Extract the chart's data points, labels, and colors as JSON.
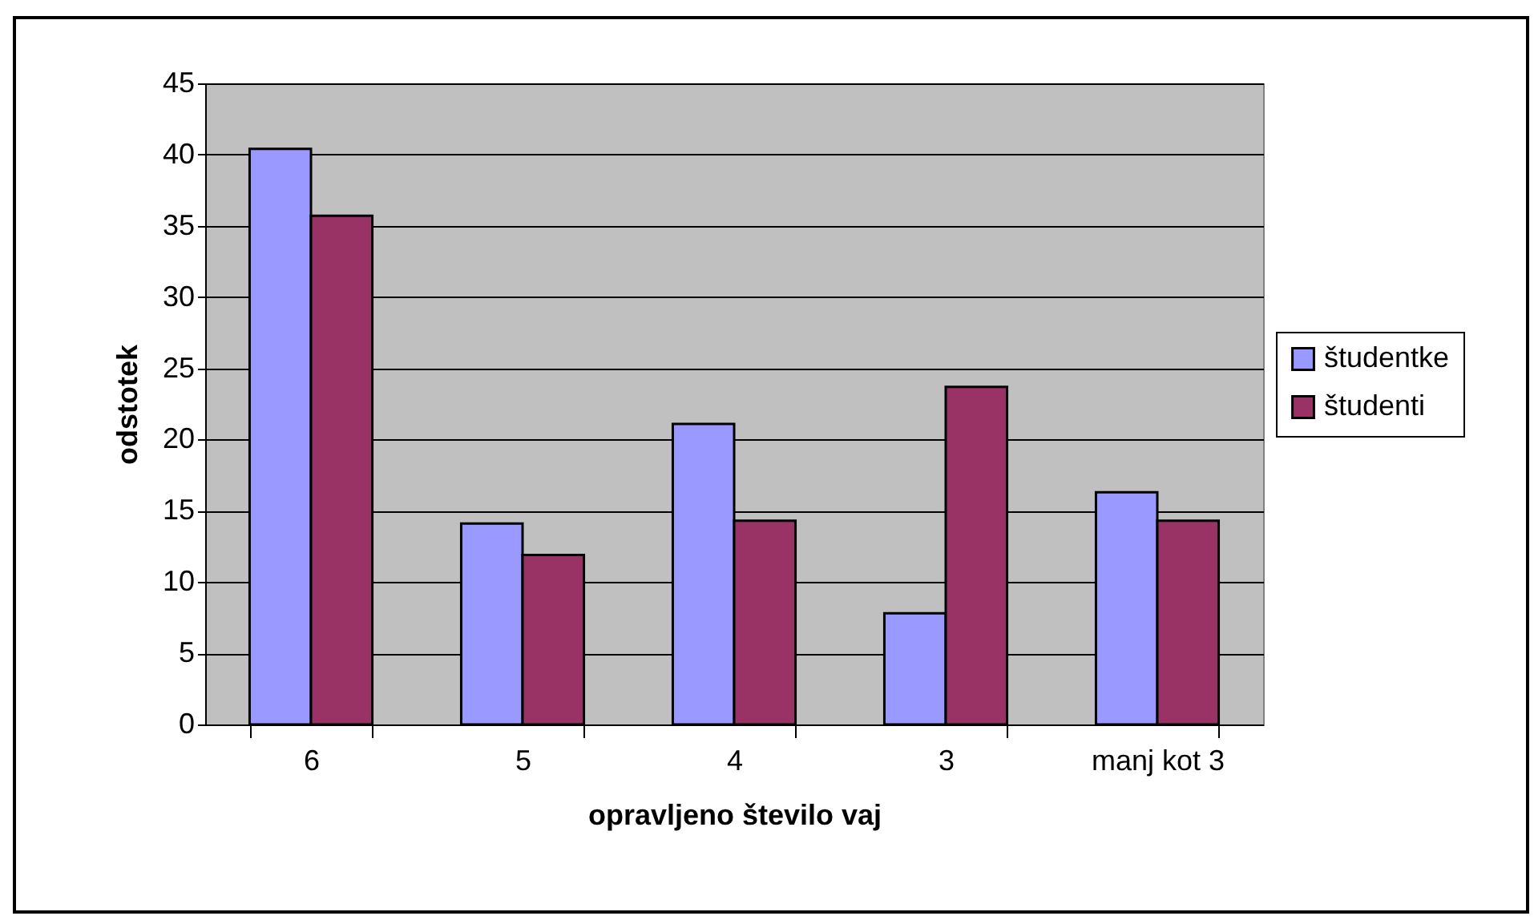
{
  "chart_data": {
    "type": "bar",
    "xlabel": "opravljeno število vaj",
    "ylabel": "odstotek",
    "categories": [
      "6",
      "5",
      "4",
      "3",
      "manj kot 3"
    ],
    "series": [
      {
        "name": "študentke",
        "color": "#9999ff",
        "values": [
          40.4,
          14.1,
          21.1,
          7.8,
          16.3
        ]
      },
      {
        "name": "študenti",
        "color": "#993366",
        "values": [
          35.7,
          11.9,
          14.3,
          23.7,
          14.3
        ]
      }
    ],
    "ylim": [
      0,
      45
    ],
    "yticks": [
      0,
      5,
      10,
      15,
      20,
      25,
      30,
      35,
      40,
      45
    ],
    "grid": "y",
    "legend": "right"
  }
}
